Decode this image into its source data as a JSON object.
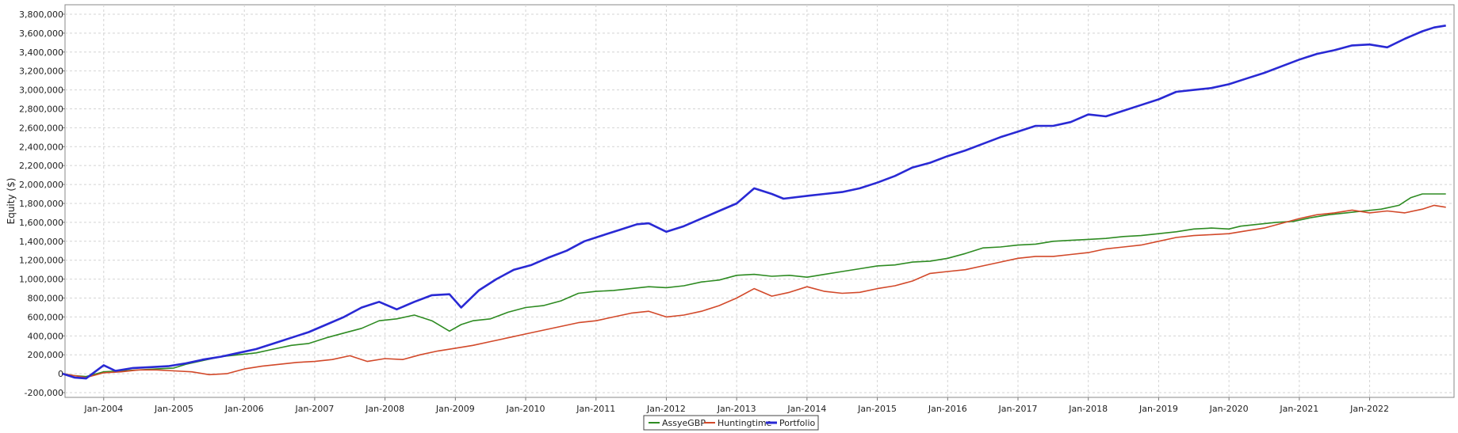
{
  "chart_data": {
    "type": "line",
    "title": "",
    "xlabel": "",
    "ylabel": "Equity ($)",
    "ylim": [
      -250000,
      3900000
    ],
    "x_ticks": [
      "Jan-2004",
      "Jan-2005",
      "Jan-2006",
      "Jan-2007",
      "Jan-2008",
      "Jan-2009",
      "Jan-2010",
      "Jan-2011",
      "Jan-2012",
      "Jan-2013",
      "Jan-2014",
      "Jan-2015",
      "Jan-2016",
      "Jan-2017",
      "Jan-2018",
      "Jan-2019",
      "Jan-2020",
      "Jan-2021",
      "Jan-2022"
    ],
    "y_ticks": [
      -200000,
      0,
      200000,
      400000,
      600000,
      800000,
      1000000,
      1200000,
      1400000,
      1600000,
      1800000,
      2000000,
      2200000,
      2400000,
      2600000,
      2800000,
      3000000,
      3200000,
      3400000,
      3600000,
      3800000
    ],
    "y_tick_labels": [
      "-200,000",
      "0",
      "200,000",
      "400,000",
      "600,000",
      "800,000",
      "1,000,000",
      "1,200,000",
      "1,400,000",
      "1,600,000",
      "1,800,000",
      "2,000,000",
      "2,200,000",
      "2,400,000",
      "2,600,000",
      "2,800,000",
      "3,000,000",
      "3,200,000",
      "3,400,000",
      "3,600,000",
      "3,800,000"
    ],
    "grid": true,
    "legend_position": "bottom-center",
    "series": [
      {
        "name": "AssyeGBP",
        "color": "#2e8b22",
        "points": [
          [
            "2003-06",
            0
          ],
          [
            "2003-08",
            -20000
          ],
          [
            "2003-10",
            -30000
          ],
          [
            "2004-01",
            20000
          ],
          [
            "2004-04",
            30000
          ],
          [
            "2004-07",
            40000
          ],
          [
            "2004-10",
            50000
          ],
          [
            "2005-01",
            60000
          ],
          [
            "2005-03",
            100000
          ],
          [
            "2005-06",
            140000
          ],
          [
            "2005-09",
            180000
          ],
          [
            "2005-12",
            200000
          ],
          [
            "2006-03",
            220000
          ],
          [
            "2006-06",
            260000
          ],
          [
            "2006-09",
            300000
          ],
          [
            "2006-12",
            320000
          ],
          [
            "2007-03",
            380000
          ],
          [
            "2007-06",
            430000
          ],
          [
            "2007-09",
            480000
          ],
          [
            "2007-12",
            560000
          ],
          [
            "2008-03",
            580000
          ],
          [
            "2008-06",
            620000
          ],
          [
            "2008-09",
            560000
          ],
          [
            "2008-12",
            450000
          ],
          [
            "2009-02",
            520000
          ],
          [
            "2009-04",
            560000
          ],
          [
            "2009-07",
            580000
          ],
          [
            "2009-10",
            650000
          ],
          [
            "2010-01",
            700000
          ],
          [
            "2010-04",
            720000
          ],
          [
            "2010-07",
            770000
          ],
          [
            "2010-10",
            850000
          ],
          [
            "2011-01",
            870000
          ],
          [
            "2011-04",
            880000
          ],
          [
            "2011-07",
            900000
          ],
          [
            "2011-10",
            920000
          ],
          [
            "2012-01",
            910000
          ],
          [
            "2012-04",
            930000
          ],
          [
            "2012-07",
            970000
          ],
          [
            "2012-10",
            990000
          ],
          [
            "2013-01",
            1040000
          ],
          [
            "2013-04",
            1050000
          ],
          [
            "2013-07",
            1030000
          ],
          [
            "2013-10",
            1040000
          ],
          [
            "2014-01",
            1020000
          ],
          [
            "2014-04",
            1050000
          ],
          [
            "2014-07",
            1080000
          ],
          [
            "2014-10",
            1110000
          ],
          [
            "2015-01",
            1140000
          ],
          [
            "2015-04",
            1150000
          ],
          [
            "2015-07",
            1180000
          ],
          [
            "2015-10",
            1190000
          ],
          [
            "2016-01",
            1220000
          ],
          [
            "2016-04",
            1270000
          ],
          [
            "2016-07",
            1330000
          ],
          [
            "2016-10",
            1340000
          ],
          [
            "2017-01",
            1360000
          ],
          [
            "2017-04",
            1370000
          ],
          [
            "2017-07",
            1400000
          ],
          [
            "2017-10",
            1410000
          ],
          [
            "2018-01",
            1420000
          ],
          [
            "2018-04",
            1430000
          ],
          [
            "2018-07",
            1450000
          ],
          [
            "2018-10",
            1460000
          ],
          [
            "2019-01",
            1480000
          ],
          [
            "2019-04",
            1500000
          ],
          [
            "2019-07",
            1530000
          ],
          [
            "2019-10",
            1540000
          ],
          [
            "2020-01",
            1530000
          ],
          [
            "2020-03",
            1560000
          ],
          [
            "2020-06",
            1580000
          ],
          [
            "2020-09",
            1600000
          ],
          [
            "2020-12",
            1610000
          ],
          [
            "2021-03",
            1650000
          ],
          [
            "2021-06",
            1680000
          ],
          [
            "2021-09",
            1700000
          ],
          [
            "2021-12",
            1720000
          ],
          [
            "2022-03",
            1740000
          ],
          [
            "2022-06",
            1780000
          ],
          [
            "2022-08",
            1860000
          ],
          [
            "2022-10",
            1900000
          ],
          [
            "2022-12",
            1900000
          ],
          [
            "2023-02",
            1900000
          ]
        ]
      },
      {
        "name": "Huntingtime",
        "color": "#d2492a",
        "points": [
          [
            "2003-06",
            0
          ],
          [
            "2003-08",
            -20000
          ],
          [
            "2003-10",
            -40000
          ],
          [
            "2004-01",
            10000
          ],
          [
            "2004-04",
            20000
          ],
          [
            "2004-07",
            40000
          ],
          [
            "2004-10",
            40000
          ],
          [
            "2005-01",
            30000
          ],
          [
            "2005-04",
            20000
          ],
          [
            "2005-07",
            -10000
          ],
          [
            "2005-10",
            0
          ],
          [
            "2006-01",
            50000
          ],
          [
            "2006-04",
            80000
          ],
          [
            "2006-07",
            100000
          ],
          [
            "2006-10",
            120000
          ],
          [
            "2007-01",
            130000
          ],
          [
            "2007-04",
            150000
          ],
          [
            "2007-07",
            190000
          ],
          [
            "2007-10",
            130000
          ],
          [
            "2008-01",
            160000
          ],
          [
            "2008-04",
            150000
          ],
          [
            "2008-07",
            200000
          ],
          [
            "2008-10",
            240000
          ],
          [
            "2009-01",
            270000
          ],
          [
            "2009-04",
            300000
          ],
          [
            "2009-07",
            340000
          ],
          [
            "2009-10",
            380000
          ],
          [
            "2010-01",
            420000
          ],
          [
            "2010-04",
            460000
          ],
          [
            "2010-07",
            500000
          ],
          [
            "2010-10",
            540000
          ],
          [
            "2011-01",
            560000
          ],
          [
            "2011-04",
            600000
          ],
          [
            "2011-07",
            640000
          ],
          [
            "2011-10",
            660000
          ],
          [
            "2012-01",
            600000
          ],
          [
            "2012-04",
            620000
          ],
          [
            "2012-07",
            660000
          ],
          [
            "2012-10",
            720000
          ],
          [
            "2013-01",
            800000
          ],
          [
            "2013-04",
            900000
          ],
          [
            "2013-07",
            820000
          ],
          [
            "2013-10",
            860000
          ],
          [
            "2014-01",
            920000
          ],
          [
            "2014-04",
            870000
          ],
          [
            "2014-07",
            850000
          ],
          [
            "2014-10",
            860000
          ],
          [
            "2015-01",
            900000
          ],
          [
            "2015-04",
            930000
          ],
          [
            "2015-07",
            980000
          ],
          [
            "2015-10",
            1060000
          ],
          [
            "2016-01",
            1080000
          ],
          [
            "2016-04",
            1100000
          ],
          [
            "2016-07",
            1140000
          ],
          [
            "2016-10",
            1180000
          ],
          [
            "2017-01",
            1220000
          ],
          [
            "2017-04",
            1240000
          ],
          [
            "2017-07",
            1240000
          ],
          [
            "2017-10",
            1260000
          ],
          [
            "2018-01",
            1280000
          ],
          [
            "2018-04",
            1320000
          ],
          [
            "2018-07",
            1340000
          ],
          [
            "2018-10",
            1360000
          ],
          [
            "2019-01",
            1400000
          ],
          [
            "2019-04",
            1440000
          ],
          [
            "2019-07",
            1460000
          ],
          [
            "2019-10",
            1470000
          ],
          [
            "2020-01",
            1480000
          ],
          [
            "2020-04",
            1510000
          ],
          [
            "2020-07",
            1540000
          ],
          [
            "2020-10",
            1590000
          ],
          [
            "2021-01",
            1640000
          ],
          [
            "2021-04",
            1680000
          ],
          [
            "2021-07",
            1700000
          ],
          [
            "2021-10",
            1730000
          ],
          [
            "2022-01",
            1700000
          ],
          [
            "2022-04",
            1720000
          ],
          [
            "2022-07",
            1700000
          ],
          [
            "2022-10",
            1740000
          ],
          [
            "2022-12",
            1780000
          ],
          [
            "2023-02",
            1760000
          ]
        ]
      },
      {
        "name": "Portfolio",
        "color": "#2929d4",
        "points": [
          [
            "2003-06",
            0
          ],
          [
            "2003-08",
            -40000
          ],
          [
            "2003-10",
            -50000
          ],
          [
            "2004-01",
            90000
          ],
          [
            "2004-03",
            30000
          ],
          [
            "2004-06",
            60000
          ],
          [
            "2004-09",
            70000
          ],
          [
            "2004-12",
            80000
          ],
          [
            "2005-03",
            110000
          ],
          [
            "2005-06",
            150000
          ],
          [
            "2005-09",
            180000
          ],
          [
            "2005-12",
            220000
          ],
          [
            "2006-03",
            260000
          ],
          [
            "2006-06",
            320000
          ],
          [
            "2006-09",
            380000
          ],
          [
            "2006-12",
            440000
          ],
          [
            "2007-03",
            520000
          ],
          [
            "2007-06",
            600000
          ],
          [
            "2007-09",
            700000
          ],
          [
            "2007-12",
            760000
          ],
          [
            "2008-03",
            680000
          ],
          [
            "2008-06",
            760000
          ],
          [
            "2008-09",
            830000
          ],
          [
            "2008-12",
            840000
          ],
          [
            "2009-02",
            700000
          ],
          [
            "2009-05",
            880000
          ],
          [
            "2009-08",
            1000000
          ],
          [
            "2009-11",
            1100000
          ],
          [
            "2010-02",
            1150000
          ],
          [
            "2010-05",
            1230000
          ],
          [
            "2010-08",
            1300000
          ],
          [
            "2010-11",
            1400000
          ],
          [
            "2011-02",
            1460000
          ],
          [
            "2011-05",
            1520000
          ],
          [
            "2011-08",
            1580000
          ],
          [
            "2011-10",
            1590000
          ],
          [
            "2012-01",
            1500000
          ],
          [
            "2012-04",
            1560000
          ],
          [
            "2012-07",
            1640000
          ],
          [
            "2012-10",
            1720000
          ],
          [
            "2013-01",
            1800000
          ],
          [
            "2013-04",
            1960000
          ],
          [
            "2013-07",
            1900000
          ],
          [
            "2013-09",
            1850000
          ],
          [
            "2014-01",
            1880000
          ],
          [
            "2014-04",
            1900000
          ],
          [
            "2014-07",
            1920000
          ],
          [
            "2014-10",
            1960000
          ],
          [
            "2015-01",
            2020000
          ],
          [
            "2015-04",
            2090000
          ],
          [
            "2015-07",
            2180000
          ],
          [
            "2015-10",
            2230000
          ],
          [
            "2016-01",
            2300000
          ],
          [
            "2016-04",
            2360000
          ],
          [
            "2016-07",
            2430000
          ],
          [
            "2016-10",
            2500000
          ],
          [
            "2017-01",
            2560000
          ],
          [
            "2017-04",
            2620000
          ],
          [
            "2017-07",
            2620000
          ],
          [
            "2017-10",
            2660000
          ],
          [
            "2018-01",
            2740000
          ],
          [
            "2018-04",
            2720000
          ],
          [
            "2018-07",
            2780000
          ],
          [
            "2018-10",
            2840000
          ],
          [
            "2019-01",
            2900000
          ],
          [
            "2019-04",
            2980000
          ],
          [
            "2019-07",
            3000000
          ],
          [
            "2019-10",
            3020000
          ],
          [
            "2020-01",
            3060000
          ],
          [
            "2020-04",
            3120000
          ],
          [
            "2020-07",
            3180000
          ],
          [
            "2020-10",
            3250000
          ],
          [
            "2021-01",
            3320000
          ],
          [
            "2021-04",
            3380000
          ],
          [
            "2021-07",
            3420000
          ],
          [
            "2021-10",
            3470000
          ],
          [
            "2022-01",
            3480000
          ],
          [
            "2022-04",
            3450000
          ],
          [
            "2022-07",
            3540000
          ],
          [
            "2022-10",
            3620000
          ],
          [
            "2022-12",
            3660000
          ],
          [
            "2023-02",
            3680000
          ]
        ]
      }
    ]
  }
}
